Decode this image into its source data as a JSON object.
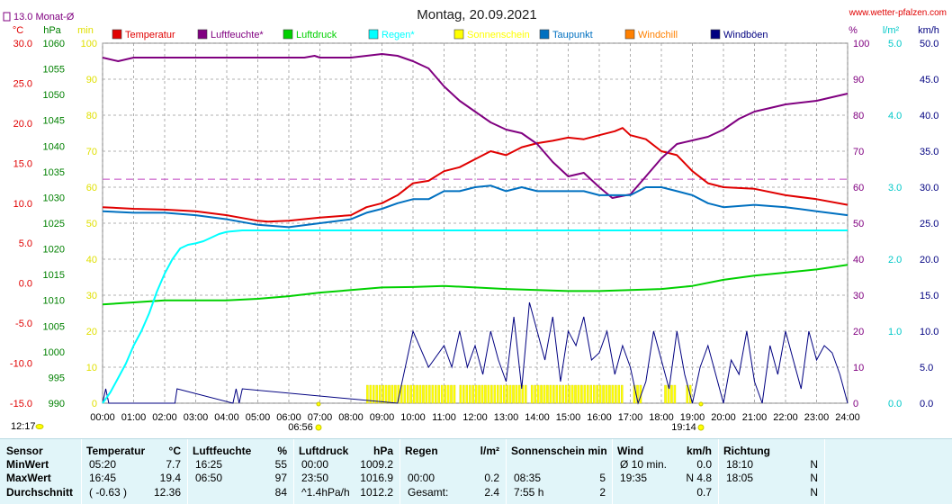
{
  "title": "Montag, 20.09.2021",
  "site": "www.wetter-pfalzen.com",
  "monthly_avg": {
    "label": "13.0 Monat-Ø",
    "value": 13.0
  },
  "axis_units": {
    "temp": "°C",
    "press": "hPa",
    "min": "min",
    "percent": "%",
    "rain": "l/m²",
    "wind": "km/h"
  },
  "legend": [
    {
      "label": "Temperatur",
      "color": "#e00000"
    },
    {
      "label": "Luftfeuchte*",
      "color": "#800080"
    },
    {
      "label": "Luftdruck",
      "color": "#00d000"
    },
    {
      "label": "Regen*",
      "color": "#00ffff"
    },
    {
      "label": "Sonnenschein",
      "color": "#ffff00"
    },
    {
      "label": "Taupunkt",
      "color": "#0070c0"
    },
    {
      "label": "Windchill",
      "color": "#ff8000"
    },
    {
      "label": "Windböen",
      "color": "#000080"
    }
  ],
  "markers": {
    "sunrise": "06:56",
    "sunset": "19:14",
    "left_time": "12:17"
  },
  "chart_data": {
    "type": "line",
    "x_unit": "hours",
    "x_ticks": [
      "00:00",
      "01:00",
      "02:00",
      "03:00",
      "04:00",
      "05:00",
      "06:00",
      "07:00",
      "08:00",
      "09:00",
      "10:00",
      "11:00",
      "12:00",
      "13:00",
      "14:00",
      "15:00",
      "16:00",
      "17:00",
      "18:00",
      "19:00",
      "20:00",
      "21:00",
      "22:00",
      "23:00",
      "24:00"
    ],
    "axes": {
      "temp": {
        "min": -15,
        "max": 30,
        "ticks": [
          "30.0",
          "25.0",
          "20.0",
          "15.0",
          "10.0",
          "5.0",
          "0.0",
          "-5.0",
          "-10.0",
          "-15.0"
        ]
      },
      "press": {
        "min": 990,
        "max": 1060,
        "ticks": [
          "1060",
          "1055",
          "1050",
          "1045",
          "1040",
          "1035",
          "1030",
          "1025",
          "1020",
          "1015",
          "1010",
          "1005",
          "1000",
          "995",
          "990"
        ]
      },
      "minutes": {
        "min": 0,
        "max": 100,
        "ticks": [
          "100",
          "90",
          "80",
          "70",
          "60",
          "50",
          "40",
          "30",
          "20",
          "10",
          "0"
        ]
      },
      "percent": {
        "min": 0,
        "max": 100,
        "ticks": [
          "100",
          "90",
          "80",
          "70",
          "60",
          "50",
          "40",
          "30",
          "20",
          "10",
          "0"
        ]
      },
      "rain": {
        "min": 0,
        "max": 5,
        "ticks": [
          "5.0",
          "4.0",
          "3.0",
          "2.0",
          "1.0",
          "0.0"
        ]
      },
      "wind": {
        "min": 0,
        "max": 50,
        "ticks": [
          "50.0",
          "45.0",
          "40.0",
          "35.0",
          "30.0",
          "25.0",
          "20.0",
          "15.0",
          "10.0",
          "5.0",
          "0.0"
        ]
      }
    },
    "series": [
      {
        "name": "Temperatur",
        "axis": "temp",
        "color": "#e00000",
        "x": [
          0,
          1,
          2,
          3,
          4,
          5,
          5.33,
          6,
          7,
          8,
          8.5,
          9,
          9.5,
          10,
          10.5,
          11,
          11.5,
          12,
          12.5,
          13,
          13.5,
          14,
          14.5,
          15,
          15.5,
          16,
          16.5,
          16.75,
          17,
          17.5,
          18,
          18.5,
          19,
          19.5,
          20,
          21,
          22,
          23,
          24
        ],
        "y": [
          9.5,
          9.3,
          9.2,
          9.0,
          8.5,
          7.8,
          7.7,
          7.8,
          8.2,
          8.5,
          9.5,
          10.0,
          11.0,
          12.5,
          12.8,
          14.0,
          14.5,
          15.5,
          16.5,
          16.0,
          17.0,
          17.5,
          17.8,
          18.2,
          18.0,
          18.5,
          19.0,
          19.4,
          18.5,
          18.0,
          16.5,
          16.0,
          14.0,
          12.5,
          12.0,
          11.8,
          11.0,
          10.5,
          9.8
        ]
      },
      {
        "name": "Luftfeuchte*",
        "axis": "percent",
        "color": "#800080",
        "x": [
          0,
          0.5,
          1,
          2,
          3,
          4,
          5,
          6,
          6.5,
          6.83,
          7,
          8,
          8.5,
          9,
          9.5,
          10,
          10.5,
          11,
          11.5,
          12,
          12.5,
          13,
          13.5,
          14,
          14.5,
          15,
          15.5,
          16,
          16.42,
          17,
          17.5,
          18,
          18.5,
          19,
          19.5,
          20,
          20.5,
          21,
          21.5,
          22,
          23,
          24
        ],
        "y": [
          96,
          95,
          96,
          96,
          96,
          96,
          96,
          96,
          96,
          96.5,
          96,
          96,
          96.5,
          97,
          96.5,
          95,
          93,
          88,
          84,
          81,
          78,
          76,
          75,
          72,
          67,
          63,
          64,
          60,
          57,
          58,
          63,
          68,
          72,
          73,
          74,
          76,
          79,
          81,
          82,
          83,
          84,
          86
        ]
      },
      {
        "name": "Luftdruck",
        "axis": "press",
        "color": "#00d000",
        "x": [
          0,
          1,
          2,
          3,
          4,
          5,
          6,
          7,
          8,
          9,
          10,
          11,
          12,
          13,
          14,
          15,
          16,
          17,
          18,
          19,
          20,
          21,
          22,
          23,
          24
        ],
        "y": [
          1009.2,
          1009.6,
          1010.0,
          1010.0,
          1010.0,
          1010.3,
          1010.8,
          1011.5,
          1012.0,
          1012.5,
          1012.6,
          1012.8,
          1012.5,
          1012.2,
          1012.0,
          1011.8,
          1011.8,
          1012.0,
          1012.2,
          1012.8,
          1014.0,
          1014.8,
          1015.4,
          1016.0,
          1016.9
        ]
      },
      {
        "name": "Regen*",
        "axis": "rain",
        "color": "#00ffff",
        "x": [
          0,
          0.25,
          0.5,
          0.75,
          1,
          1.25,
          1.5,
          1.75,
          2,
          2.25,
          2.5,
          2.75,
          3,
          3.25,
          3.5,
          3.75,
          4,
          4.5,
          5,
          24
        ],
        "y": [
          0,
          0.15,
          0.35,
          0.55,
          0.8,
          1.0,
          1.25,
          1.55,
          1.8,
          2.0,
          2.15,
          2.2,
          2.22,
          2.25,
          2.3,
          2.35,
          2.38,
          2.4,
          2.4,
          2.4
        ]
      },
      {
        "name": "Taupunkt",
        "axis": "temp",
        "color": "#0070c0",
        "x": [
          0,
          1,
          2,
          3,
          4,
          5,
          6,
          7,
          8,
          8.5,
          9,
          9.5,
          10,
          10.5,
          11,
          11.5,
          12,
          12.5,
          13,
          13.5,
          14,
          14.5,
          15,
          15.5,
          16,
          16.5,
          17,
          17.5,
          18,
          18.5,
          19,
          19.5,
          20,
          21,
          22,
          23,
          24
        ],
        "y": [
          9.0,
          8.8,
          8.8,
          8.5,
          8.0,
          7.3,
          7.0,
          7.5,
          8.0,
          8.8,
          9.3,
          10.0,
          10.5,
          10.5,
          11.5,
          11.5,
          12.0,
          12.2,
          11.5,
          12.0,
          11.5,
          11.5,
          11.5,
          11.5,
          11.0,
          11.0,
          11.0,
          12.0,
          12.0,
          11.5,
          11.0,
          10.0,
          9.5,
          9.8,
          9.5,
          9.0,
          8.5
        ]
      }
    ],
    "sunshine_minutes": {
      "x_start": 8.5,
      "x_end": 19.0,
      "color": "#ffff00",
      "height": 5
    },
    "wind_gusts": {
      "axis": "wind",
      "color": "#000080",
      "x": [
        0,
        0.1,
        0.2,
        2.33,
        2.4,
        4.2,
        4.3,
        4.4,
        4.5,
        9.5,
        10,
        10.5,
        11,
        11.25,
        11.5,
        11.75,
        12,
        12.25,
        12.5,
        12.75,
        13,
        13.25,
        13.5,
        13.75,
        14,
        14.25,
        14.5,
        14.75,
        15,
        15.25,
        15.5,
        15.75,
        16,
        16.25,
        16.5,
        16.75,
        17,
        17.25,
        17.5,
        17.75,
        18,
        18.25,
        18.5,
        18.75,
        19,
        19.25,
        19.5,
        19.75,
        20,
        20.25,
        20.5,
        20.75,
        21,
        21.25,
        21.5,
        21.75,
        22,
        22.25,
        22.5,
        22.75,
        23,
        23.25,
        23.5,
        23.75,
        24
      ],
      "y": [
        0,
        2,
        0,
        0,
        2,
        0,
        2,
        0,
        2,
        0,
        10,
        5,
        8,
        5,
        10,
        5,
        8,
        4,
        10,
        6,
        3,
        12,
        2,
        14,
        10,
        6,
        12,
        3,
        10,
        8,
        12,
        6,
        7,
        10,
        4,
        8,
        5,
        0,
        3,
        10,
        6,
        2,
        10,
        4,
        0,
        5,
        8,
        4,
        0,
        6,
        4,
        10,
        3,
        0,
        8,
        4,
        10,
        6,
        2,
        10,
        6,
        8,
        7,
        4,
        0
      ]
    }
  },
  "stats": {
    "row_labels": [
      "Sensor",
      "MinWert",
      "MaxWert",
      "Durchschnitt"
    ],
    "columns": [
      {
        "name": "Temperatur",
        "unit": "°C",
        "rows": [
          [
            "05:20",
            "7.7"
          ],
          [
            "16:45",
            "19.4"
          ],
          [
            "( -0.63 )",
            "12.36"
          ]
        ]
      },
      {
        "name": "Luftfeuchte",
        "unit": "%",
        "rows": [
          [
            "16:25",
            "55"
          ],
          [
            "06:50",
            "97"
          ],
          [
            "",
            "84"
          ]
        ]
      },
      {
        "name": "Luftdruck",
        "unit": "hPa",
        "rows": [
          [
            "00:00",
            "1009.2"
          ],
          [
            "23:50",
            "1016.9"
          ],
          [
            "^1.4hPa/h",
            "1012.2"
          ]
        ]
      },
      {
        "name": "Regen",
        "unit": "l/m²",
        "rows": [
          [
            "",
            ""
          ],
          [
            "00:00",
            "0.2"
          ],
          [
            "Gesamt:",
            "2.4"
          ]
        ]
      },
      {
        "name": "Sonnenschein min",
        "unit": "",
        "rows": [
          [
            "",
            ""
          ],
          [
            "08:35",
            "5"
          ],
          [
            "7:55 h",
            "2"
          ]
        ]
      },
      {
        "name": "Wind",
        "unit": "km/h",
        "rows": [
          [
            "Ø 10 min.",
            "0.0"
          ],
          [
            "19:35",
            "N 4.8"
          ],
          [
            "",
            "0.7"
          ]
        ]
      },
      {
        "name": "Richtung",
        "unit": "",
        "rows": [
          [
            "18:10",
            "N"
          ],
          [
            "18:05",
            "N"
          ],
          [
            "",
            "N"
          ]
        ]
      }
    ]
  }
}
